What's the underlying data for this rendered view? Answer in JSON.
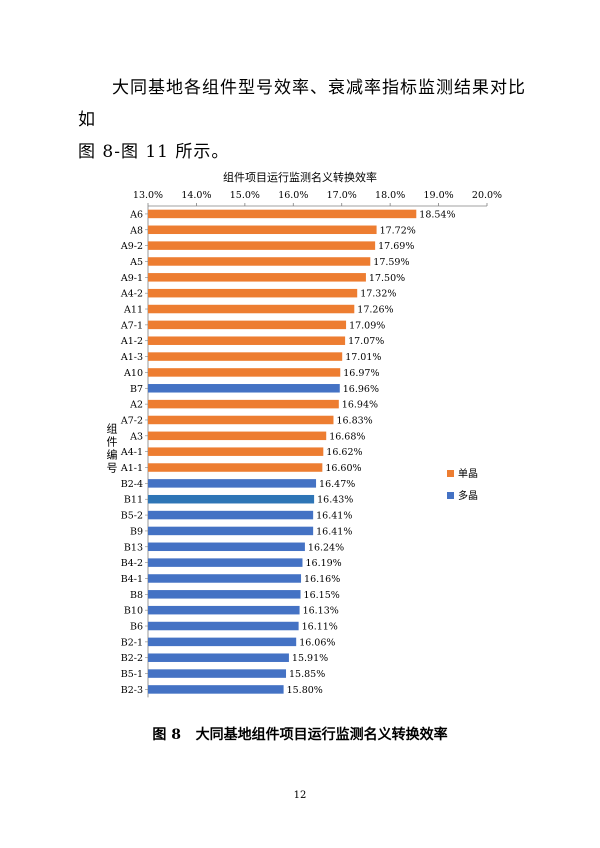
{
  "document": {
    "intro_line1": "大同基地各组件型号效率、衰减率指标监测结果对比如",
    "intro_line2": "图 8-图 11 所示。",
    "caption_label": "图 8",
    "caption_text": "大同基地组件项目运行监测名义转换效率",
    "page_number": "12"
  },
  "chart_data": {
    "type": "bar",
    "orientation": "horizontal",
    "title": "组件项目运行监测名义转换效率",
    "ylabel": "组件编号",
    "xlabel": "",
    "xlim": [
      13.0,
      20.0
    ],
    "x_ticks": [
      "13.0%",
      "14.0%",
      "15.0%",
      "16.0%",
      "17.0%",
      "18.0%",
      "19.0%",
      "20.0%"
    ],
    "x_axis_position": "top",
    "grid": false,
    "legend_position": "right",
    "colors": {
      "单晶": "#ED7D31",
      "多晶": "#4472C4",
      "B11": "#2E75B6"
    },
    "legend": [
      {
        "name": "单晶",
        "color": "#ED7D31"
      },
      {
        "name": "多晶",
        "color": "#4472C4"
      }
    ],
    "bars": [
      {
        "category": "A6",
        "value": 18.54,
        "label": "18.54%",
        "group": "单晶"
      },
      {
        "category": "A8",
        "value": 17.72,
        "label": "17.72%",
        "group": "单晶"
      },
      {
        "category": "A9-2",
        "value": 17.69,
        "label": "17.69%",
        "group": "单晶"
      },
      {
        "category": "A5",
        "value": 17.59,
        "label": "17.59%",
        "group": "单晶"
      },
      {
        "category": "A9-1",
        "value": 17.5,
        "label": "17.50%",
        "group": "单晶"
      },
      {
        "category": "A4-2",
        "value": 17.32,
        "label": "17.32%",
        "group": "单晶"
      },
      {
        "category": "A11",
        "value": 17.26,
        "label": "17.26%",
        "group": "单晶"
      },
      {
        "category": "A7-1",
        "value": 17.09,
        "label": "17.09%",
        "group": "单晶"
      },
      {
        "category": "A1-2",
        "value": 17.07,
        "label": "17.07%",
        "group": "单晶"
      },
      {
        "category": "A1-3",
        "value": 17.01,
        "label": "17.01%",
        "group": "单晶"
      },
      {
        "category": "A10",
        "value": 16.97,
        "label": "16.97%",
        "group": "单晶"
      },
      {
        "category": "B7",
        "value": 16.96,
        "label": "16.96%",
        "group": "多晶"
      },
      {
        "category": "A2",
        "value": 16.94,
        "label": "16.94%",
        "group": "单晶"
      },
      {
        "category": "A7-2",
        "value": 16.83,
        "label": "16.83%",
        "group": "单晶"
      },
      {
        "category": "A3",
        "value": 16.68,
        "label": "16.68%",
        "group": "单晶"
      },
      {
        "category": "A4-1",
        "value": 16.62,
        "label": "16.62%",
        "group": "单晶"
      },
      {
        "category": "A1-1",
        "value": 16.6,
        "label": "16.60%",
        "group": "单晶"
      },
      {
        "category": "B2-4",
        "value": 16.47,
        "label": "16.47%",
        "group": "多晶"
      },
      {
        "category": "B11",
        "value": 16.43,
        "label": "16.43%",
        "group": "多晶"
      },
      {
        "category": "B5-2",
        "value": 16.41,
        "label": "16.41%",
        "group": "多晶"
      },
      {
        "category": "B9",
        "value": 16.41,
        "label": "16.41%",
        "group": "多晶"
      },
      {
        "category": "B13",
        "value": 16.24,
        "label": "16.24%",
        "group": "多晶"
      },
      {
        "category": "B4-2",
        "value": 16.19,
        "label": "16.19%",
        "group": "多晶"
      },
      {
        "category": "B4-1",
        "value": 16.16,
        "label": "16.16%",
        "group": "多晶"
      },
      {
        "category": "B8",
        "value": 16.15,
        "label": "16.15%",
        "group": "多晶"
      },
      {
        "category": "B10",
        "value": 16.13,
        "label": "16.13%",
        "group": "多晶"
      },
      {
        "category": "B6",
        "value": 16.11,
        "label": "16.11%",
        "group": "多晶"
      },
      {
        "category": "B2-1",
        "value": 16.06,
        "label": "16.06%",
        "group": "多晶"
      },
      {
        "category": "B2-2",
        "value": 15.91,
        "label": "15.91%",
        "group": "多晶"
      },
      {
        "category": "B5-1",
        "value": 15.85,
        "label": "15.85%",
        "group": "多晶"
      },
      {
        "category": "B2-3",
        "value": 15.8,
        "label": "15.80%",
        "group": "多晶"
      }
    ]
  }
}
